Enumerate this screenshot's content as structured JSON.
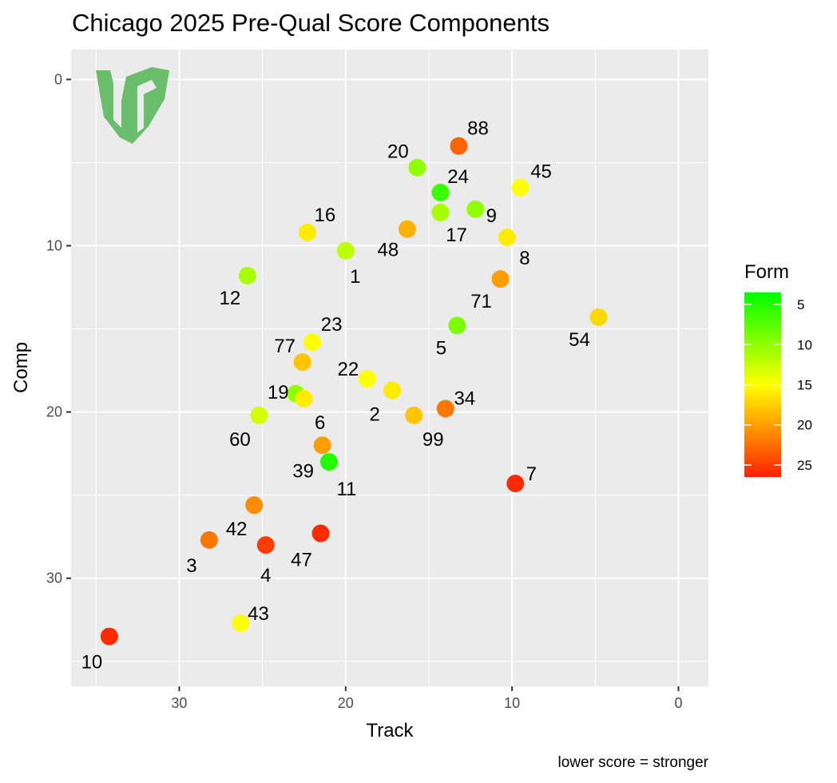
{
  "chart_data": {
    "type": "scatter",
    "title": "Chicago 2025 Pre-Qual Score Components",
    "xlabel": "Track",
    "ylabel": "Comp",
    "caption": "lower score = stronger",
    "x_reversed": true,
    "y_reversed": true,
    "xlim": [
      36.5,
      -1.8
    ],
    "ylim": [
      -1.8,
      36.5
    ],
    "x_ticks": [
      30,
      20,
      10,
      0
    ],
    "y_ticks": [
      0,
      10,
      20,
      30
    ],
    "x_tick_labels": [
      "30",
      "20",
      "10",
      "0"
    ],
    "y_tick_labels": [
      "0",
      "10",
      "20",
      "30"
    ],
    "grid": true,
    "legend": {
      "title": "Form",
      "position": "right",
      "ticks": [
        5,
        10,
        15,
        20,
        25
      ],
      "tick_labels": [
        "5",
        "10",
        "15",
        "20",
        "25"
      ],
      "range": [
        3.5,
        26.5
      ],
      "colors": {
        "low": "#00ff00",
        "mid": "#ffff00",
        "high": "#ff2000"
      }
    },
    "logo": {
      "text": "BC",
      "color": "#6abd6a"
    },
    "points": [
      {
        "label": "88",
        "track": 13.2,
        "comp": 4.0,
        "form": 23
      },
      {
        "label": "20",
        "track": 15.7,
        "comp": 5.3,
        "form": 10
      },
      {
        "label": "24",
        "track": 14.3,
        "comp": 6.8,
        "form": 6
      },
      {
        "label": "45",
        "track": 9.5,
        "comp": 6.5,
        "form": 15
      },
      {
        "label": "9",
        "track": 12.2,
        "comp": 7.8,
        "form": 10
      },
      {
        "label": "17",
        "track": 14.3,
        "comp": 8.0,
        "form": 11
      },
      {
        "label": "16",
        "track": 22.3,
        "comp": 9.2,
        "form": 16
      },
      {
        "label": "48",
        "track": 16.3,
        "comp": 9.0,
        "form": 19
      },
      {
        "label": "8",
        "track": 10.3,
        "comp": 9.5,
        "form": 16
      },
      {
        "label": "1",
        "track": 20.0,
        "comp": 10.3,
        "form": 12
      },
      {
        "label": "12",
        "track": 25.9,
        "comp": 11.8,
        "form": 11
      },
      {
        "label": "71",
        "track": 10.7,
        "comp": 12.0,
        "form": 20
      },
      {
        "label": "5",
        "track": 13.3,
        "comp": 14.8,
        "form": 9
      },
      {
        "label": "54",
        "track": 4.8,
        "comp": 14.3,
        "form": 17
      },
      {
        "label": "23",
        "track": 22.0,
        "comp": 15.8,
        "form": 15
      },
      {
        "label": "77",
        "track": 22.6,
        "comp": 17.0,
        "form": 18
      },
      {
        "label": "22",
        "track": 18.7,
        "comp": 18.0,
        "form": 15
      },
      {
        "label": "2",
        "track": 17.2,
        "comp": 18.7,
        "form": 16
      },
      {
        "label": "19",
        "track": 23.0,
        "comp": 18.9,
        "form": 10
      },
      {
        "label": "6",
        "track": 22.5,
        "comp": 19.2,
        "form": 16
      },
      {
        "label": "34",
        "track": 14.0,
        "comp": 19.8,
        "form": 22
      },
      {
        "label": "60",
        "track": 25.2,
        "comp": 20.2,
        "form": 13
      },
      {
        "label": "99",
        "track": 15.9,
        "comp": 20.2,
        "form": 18
      },
      {
        "label": "39",
        "track": 21.4,
        "comp": 22.0,
        "form": 20
      },
      {
        "label": "11",
        "track": 21.0,
        "comp": 23.0,
        "form": 5
      },
      {
        "label": "7",
        "track": 9.8,
        "comp": 24.3,
        "form": 26
      },
      {
        "label": "42",
        "track": 25.5,
        "comp": 25.6,
        "form": 21
      },
      {
        "label": "3",
        "track": 28.2,
        "comp": 27.7,
        "form": 22
      },
      {
        "label": "4",
        "track": 24.8,
        "comp": 28.0,
        "form": 25
      },
      {
        "label": "47",
        "track": 21.5,
        "comp": 27.3,
        "form": 26
      },
      {
        "label": "43",
        "track": 26.3,
        "comp": 32.7,
        "form": 15
      },
      {
        "label": "10",
        "track": 34.2,
        "comp": 33.5,
        "form": 26
      }
    ]
  }
}
